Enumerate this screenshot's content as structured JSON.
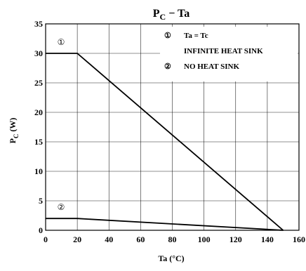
{
  "chart_data": {
    "type": "line",
    "title": {
      "main": "P",
      "subscript": "C",
      "rest": " − Ta"
    },
    "xlabel": "Ta   (°C)",
    "ylabel": {
      "main": "P",
      "subscript": "C",
      "rest": "   (W)"
    },
    "xlim": [
      0,
      160
    ],
    "ylim": [
      0,
      35
    ],
    "x_ticks": [
      0,
      20,
      40,
      60,
      80,
      100,
      120,
      140,
      160
    ],
    "y_ticks": [
      0,
      5,
      10,
      15,
      20,
      25,
      30,
      35
    ],
    "grid": true,
    "legend": {
      "placement": "top-right",
      "items": [
        {
          "marker": "①",
          "line1": "Ta = Tc",
          "line2": "INFINITE HEAT SINK"
        },
        {
          "marker": "②",
          "line1": "NO HEAT SINK"
        }
      ]
    },
    "series": [
      {
        "marker": "①",
        "x": [
          0,
          20,
          150
        ],
        "y": [
          30,
          30,
          0
        ]
      },
      {
        "marker": "②",
        "x": [
          0,
          20,
          150
        ],
        "y": [
          2,
          2,
          0
        ]
      }
    ]
  },
  "colors": {
    "background": "#ffffff",
    "axis": "#000000",
    "grid": "#000000",
    "line": "#000000"
  }
}
